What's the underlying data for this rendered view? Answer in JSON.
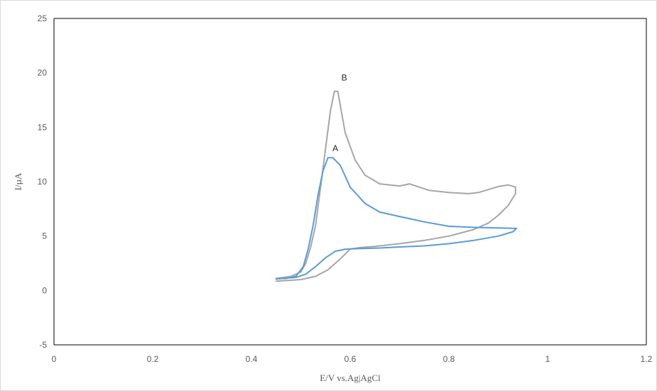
{
  "chart_data": {
    "type": "line",
    "title": "",
    "xlabel": "E/V vs.Ag|AgCl",
    "ylabel": "I/µA",
    "xlim": [
      0,
      1.2
    ],
    "ylim": [
      -5,
      25
    ],
    "x_ticks": [
      0,
      0.2,
      0.4,
      0.6,
      0.8,
      1,
      1.2
    ],
    "x_tick_labels": [
      "0",
      "0.2",
      "0.4",
      "0.6",
      "0.8",
      "1",
      "1.2"
    ],
    "y_ticks": [
      -5,
      0,
      5,
      10,
      15,
      20,
      25
    ],
    "y_tick_labels": [
      "-5",
      "0",
      "5",
      "10",
      "15",
      "20",
      "25"
    ],
    "grid": false,
    "legend": "none",
    "series": [
      {
        "color": "#a6a6a6",
        "points": [
          [
            0.45,
            0.85
          ],
          [
            0.5,
            1.0
          ],
          [
            0.53,
            1.3
          ],
          [
            0.555,
            1.9
          ],
          [
            0.58,
            2.9
          ],
          [
            0.6,
            3.8
          ],
          [
            0.62,
            3.95
          ],
          [
            0.65,
            4.05
          ],
          [
            0.7,
            4.3
          ],
          [
            0.75,
            4.6
          ],
          [
            0.8,
            5.0
          ],
          [
            0.85,
            5.6
          ],
          [
            0.88,
            6.2
          ],
          [
            0.9,
            6.9
          ],
          [
            0.92,
            7.8
          ],
          [
            0.935,
            8.9
          ],
          [
            0.935,
            9.5
          ],
          [
            0.92,
            9.7
          ],
          [
            0.9,
            9.55
          ],
          [
            0.86,
            9.0
          ],
          [
            0.84,
            8.9
          ],
          [
            0.8,
            9.0
          ],
          [
            0.76,
            9.2
          ],
          [
            0.72,
            9.8
          ],
          [
            0.7,
            9.6
          ],
          [
            0.66,
            9.8
          ],
          [
            0.63,
            10.6
          ],
          [
            0.61,
            12.0
          ],
          [
            0.59,
            14.5
          ],
          [
            0.58,
            17.0
          ],
          [
            0.575,
            18.3
          ],
          [
            0.568,
            18.3
          ],
          [
            0.56,
            16.5
          ],
          [
            0.55,
            13.0
          ],
          [
            0.54,
            9.5
          ],
          [
            0.53,
            6.0
          ],
          [
            0.52,
            4.0
          ],
          [
            0.51,
            2.5
          ],
          [
            0.5,
            1.7
          ],
          [
            0.48,
            1.3
          ],
          [
            0.45,
            1.1
          ]
        ]
      },
      {
        "color": "#5b9bd5",
        "points": [
          [
            0.45,
            1.05
          ],
          [
            0.49,
            1.2
          ],
          [
            0.51,
            1.5
          ],
          [
            0.53,
            2.2
          ],
          [
            0.55,
            3.0
          ],
          [
            0.57,
            3.6
          ],
          [
            0.59,
            3.8
          ],
          [
            0.62,
            3.85
          ],
          [
            0.66,
            3.9
          ],
          [
            0.7,
            4.0
          ],
          [
            0.75,
            4.1
          ],
          [
            0.8,
            4.3
          ],
          [
            0.85,
            4.6
          ],
          [
            0.9,
            5.0
          ],
          [
            0.93,
            5.4
          ],
          [
            0.937,
            5.7
          ],
          [
            0.9,
            5.75
          ],
          [
            0.85,
            5.8
          ],
          [
            0.8,
            5.9
          ],
          [
            0.75,
            6.3
          ],
          [
            0.72,
            6.6
          ],
          [
            0.7,
            6.8
          ],
          [
            0.66,
            7.2
          ],
          [
            0.63,
            8.0
          ],
          [
            0.6,
            9.5
          ],
          [
            0.58,
            11.5
          ],
          [
            0.565,
            12.2
          ],
          [
            0.555,
            12.2
          ],
          [
            0.545,
            11.0
          ],
          [
            0.535,
            8.8
          ],
          [
            0.525,
            6.0
          ],
          [
            0.515,
            3.8
          ],
          [
            0.505,
            2.2
          ],
          [
            0.49,
            1.3
          ],
          [
            0.47,
            1.1
          ],
          [
            0.45,
            1.1
          ]
        ]
      }
    ],
    "annotations": [
      {
        "text": "A",
        "x": 0.57,
        "y": 12.8,
        "color": "#222222"
      },
      {
        "text": "B",
        "x": 0.588,
        "y": 19.3,
        "color": "#222222"
      }
    ],
    "colors": {
      "axis": "#000000",
      "text": "#595959",
      "frame": "#d9d9d9"
    }
  }
}
